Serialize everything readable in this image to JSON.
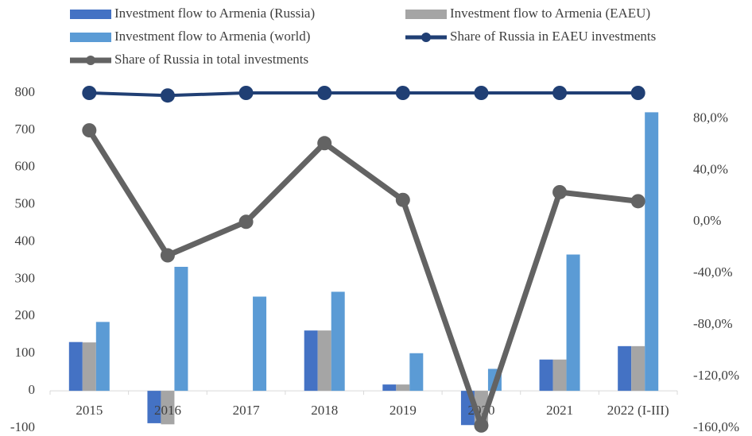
{
  "chart_data": {
    "type": "bar",
    "categories": [
      "2015",
      "2016",
      "2017",
      "2018",
      "2019",
      "2020",
      "2021",
      "2022 (I-III)"
    ],
    "series": [
      {
        "name": "Investment flow to Armenia (Russia)",
        "type": "bar",
        "color": "#4472c4",
        "values": [
          131,
          -87,
          0,
          162,
          17,
          -92,
          84,
          120
        ]
      },
      {
        "name": "Investment flow to Armenia (EAEU)",
        "type": "bar",
        "color": "#a5a5a5",
        "values": [
          130,
          -90,
          0,
          162,
          17,
          -88,
          84,
          120
        ]
      },
      {
        "name": "Investment flow to Armenia (world)",
        "type": "bar",
        "color": "#5b9bd5",
        "values": [
          185,
          333,
          253,
          266,
          101,
          59,
          366,
          748
        ]
      },
      {
        "name": "Share of Russia in EAEU investments",
        "type": "line",
        "axis": "y2",
        "color": "#203f74",
        "values": [
          100,
          98,
          100,
          100,
          100,
          100,
          100,
          100
        ]
      },
      {
        "name": "Share of Russia in total investments",
        "type": "line",
        "axis": "y2",
        "color": "#636363",
        "values": [
          71,
          -26,
          0,
          61,
          17,
          -158,
          23,
          16
        ]
      }
    ],
    "ylim": [
      -100,
      800
    ],
    "yticks": [
      -100,
      0,
      100,
      200,
      300,
      400,
      500,
      600,
      700,
      800
    ],
    "y2lim": [
      -160,
      100
    ],
    "y2ticks": [
      {
        "value": -160,
        "label": "-160,0%"
      },
      {
        "value": -120,
        "label": "-120,0%"
      },
      {
        "value": -80,
        "label": "-80,0%"
      },
      {
        "value": -40,
        "label": "-40,0%"
      },
      {
        "value": 0,
        "label": "0,0%"
      },
      {
        "value": 40,
        "label": "40,0%"
      },
      {
        "value": 80,
        "label": "80,0%"
      }
    ],
    "legend": "top"
  }
}
